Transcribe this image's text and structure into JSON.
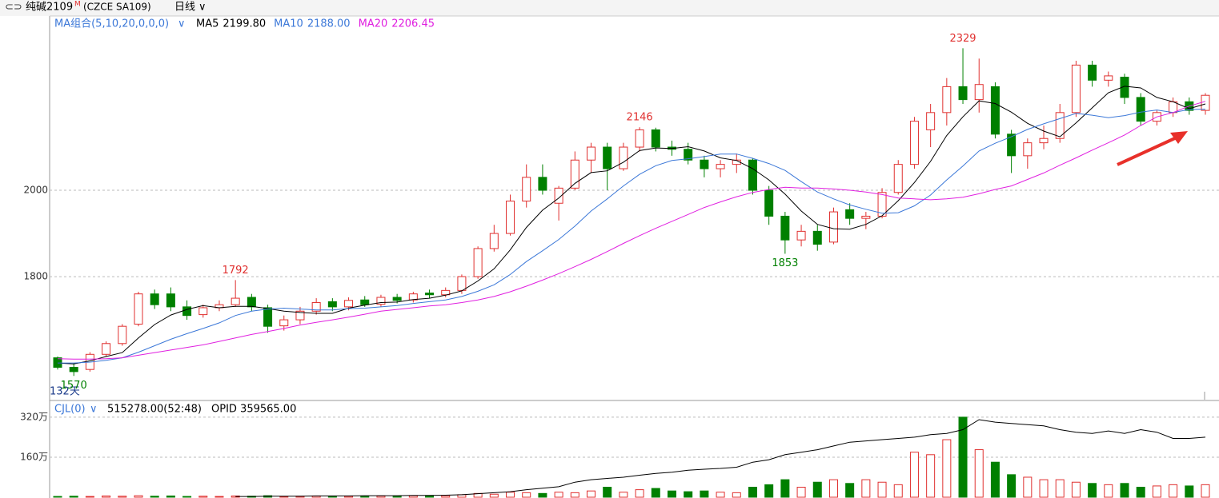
{
  "header": {
    "symbol": "纯碱2109",
    "flag": "M",
    "code": "(CZCE SA109)",
    "period": "日线"
  },
  "chart_data": {
    "type": "candlestick",
    "indicator": "MA组合(5,10,20,0,0,0)",
    "ylim": [
      1515,
      2400
    ],
    "yticks": [
      1800,
      2000
    ],
    "grid": true,
    "up_color": "#e0302f",
    "down_color": "#008000",
    "period_label": "132天",
    "annotations": [
      1570,
      1792,
      2146,
      1853,
      2329
    ],
    "candles": [
      {
        "o": 1612,
        "h": 1615,
        "l": 1585,
        "c": 1590
      },
      {
        "o": 1590,
        "h": 1600,
        "l": 1570,
        "c": 1580
      },
      {
        "o": 1585,
        "h": 1625,
        "l": 1580,
        "c": 1620
      },
      {
        "o": 1620,
        "h": 1650,
        "l": 1615,
        "c": 1645
      },
      {
        "o": 1645,
        "h": 1690,
        "l": 1640,
        "c": 1685
      },
      {
        "o": 1690,
        "h": 1765,
        "l": 1685,
        "c": 1760
      },
      {
        "o": 1760,
        "h": 1770,
        "l": 1725,
        "c": 1735
      },
      {
        "o": 1760,
        "h": 1775,
        "l": 1720,
        "c": 1730
      },
      {
        "o": 1730,
        "h": 1745,
        "l": 1700,
        "c": 1710
      },
      {
        "o": 1712,
        "h": 1735,
        "l": 1705,
        "c": 1728
      },
      {
        "o": 1728,
        "h": 1745,
        "l": 1720,
        "c": 1735
      },
      {
        "o": 1735,
        "h": 1792,
        "l": 1730,
        "c": 1750
      },
      {
        "o": 1752,
        "h": 1760,
        "l": 1720,
        "c": 1730
      },
      {
        "o": 1728,
        "h": 1735,
        "l": 1670,
        "c": 1685
      },
      {
        "o": 1686,
        "h": 1710,
        "l": 1675,
        "c": 1700
      },
      {
        "o": 1700,
        "h": 1730,
        "l": 1690,
        "c": 1720
      },
      {
        "o": 1720,
        "h": 1750,
        "l": 1712,
        "c": 1740
      },
      {
        "o": 1742,
        "h": 1750,
        "l": 1720,
        "c": 1730
      },
      {
        "o": 1730,
        "h": 1752,
        "l": 1722,
        "c": 1745
      },
      {
        "o": 1746,
        "h": 1755,
        "l": 1730,
        "c": 1735
      },
      {
        "o": 1736,
        "h": 1758,
        "l": 1730,
        "c": 1752
      },
      {
        "o": 1752,
        "h": 1760,
        "l": 1738,
        "c": 1745
      },
      {
        "o": 1746,
        "h": 1765,
        "l": 1740,
        "c": 1760
      },
      {
        "o": 1762,
        "h": 1770,
        "l": 1750,
        "c": 1758
      },
      {
        "o": 1758,
        "h": 1775,
        "l": 1752,
        "c": 1768
      },
      {
        "o": 1768,
        "h": 1805,
        "l": 1760,
        "c": 1800
      },
      {
        "o": 1800,
        "h": 1870,
        "l": 1795,
        "c": 1865
      },
      {
        "o": 1865,
        "h": 1920,
        "l": 1858,
        "c": 1900
      },
      {
        "o": 1900,
        "h": 1990,
        "l": 1895,
        "c": 1975
      },
      {
        "o": 1975,
        "h": 2060,
        "l": 1960,
        "c": 2030
      },
      {
        "o": 2030,
        "h": 2060,
        "l": 1990,
        "c": 2000
      },
      {
        "o": 1970,
        "h": 2010,
        "l": 1930,
        "c": 2005
      },
      {
        "o": 2005,
        "h": 2090,
        "l": 2000,
        "c": 2070
      },
      {
        "o": 2070,
        "h": 2110,
        "l": 2040,
        "c": 2100
      },
      {
        "o": 2100,
        "h": 2110,
        "l": 2000,
        "c": 2050
      },
      {
        "o": 2050,
        "h": 2110,
        "l": 2045,
        "c": 2100
      },
      {
        "o": 2100,
        "h": 2146,
        "l": 2090,
        "c": 2140
      },
      {
        "o": 2140,
        "h": 2145,
        "l": 2090,
        "c": 2100
      },
      {
        "o": 2100,
        "h": 2115,
        "l": 2080,
        "c": 2095
      },
      {
        "o": 2095,
        "h": 2110,
        "l": 2060,
        "c": 2070
      },
      {
        "o": 2070,
        "h": 2080,
        "l": 2030,
        "c": 2050
      },
      {
        "o": 2050,
        "h": 2070,
        "l": 2030,
        "c": 2060
      },
      {
        "o": 2060,
        "h": 2085,
        "l": 2040,
        "c": 2070
      },
      {
        "o": 2070,
        "h": 2075,
        "l": 1990,
        "c": 2000
      },
      {
        "o": 2000,
        "h": 2010,
        "l": 1920,
        "c": 1940
      },
      {
        "o": 1940,
        "h": 1950,
        "l": 1853,
        "c": 1885
      },
      {
        "o": 1885,
        "h": 1920,
        "l": 1870,
        "c": 1905
      },
      {
        "o": 1905,
        "h": 1920,
        "l": 1860,
        "c": 1875
      },
      {
        "o": 1880,
        "h": 1960,
        "l": 1875,
        "c": 1950
      },
      {
        "o": 1955,
        "h": 1970,
        "l": 1920,
        "c": 1935
      },
      {
        "o": 1935,
        "h": 1950,
        "l": 1910,
        "c": 1940
      },
      {
        "o": 1940,
        "h": 2005,
        "l": 1935,
        "c": 1995
      },
      {
        "o": 1995,
        "h": 2070,
        "l": 1990,
        "c": 2060
      },
      {
        "o": 2060,
        "h": 2170,
        "l": 2050,
        "c": 2160
      },
      {
        "o": 2140,
        "h": 2200,
        "l": 2100,
        "c": 2180
      },
      {
        "o": 2180,
        "h": 2260,
        "l": 2150,
        "c": 2240
      },
      {
        "o": 2240,
        "h": 2329,
        "l": 2200,
        "c": 2210
      },
      {
        "o": 2210,
        "h": 2305,
        "l": 2180,
        "c": 2245
      },
      {
        "o": 2240,
        "h": 2250,
        "l": 2120,
        "c": 2130
      },
      {
        "o": 2130,
        "h": 2140,
        "l": 2040,
        "c": 2080
      },
      {
        "o": 2080,
        "h": 2120,
        "l": 2050,
        "c": 2110
      },
      {
        "o": 2110,
        "h": 2150,
        "l": 2095,
        "c": 2120
      },
      {
        "o": 2120,
        "h": 2200,
        "l": 2110,
        "c": 2180
      },
      {
        "o": 2180,
        "h": 2300,
        "l": 2170,
        "c": 2290
      },
      {
        "o": 2290,
        "h": 2300,
        "l": 2240,
        "c": 2255
      },
      {
        "o": 2255,
        "h": 2275,
        "l": 2240,
        "c": 2265
      },
      {
        "o": 2262,
        "h": 2270,
        "l": 2200,
        "c": 2215
      },
      {
        "o": 2215,
        "h": 2225,
        "l": 2150,
        "c": 2160
      },
      {
        "o": 2160,
        "h": 2185,
        "l": 2150,
        "c": 2180
      },
      {
        "o": 2180,
        "h": 2215,
        "l": 2170,
        "c": 2205
      },
      {
        "o": 2205,
        "h": 2215,
        "l": 2175,
        "c": 2185
      },
      {
        "o": 2185,
        "h": 2225,
        "l": 2175,
        "c": 2220
      }
    ],
    "series": [
      {
        "name": "MA5",
        "current": "2199.80",
        "color": "#000000",
        "values": [
          1600,
          1598,
          1605,
          1615,
          1624,
          1658,
          1689,
          1711,
          1724,
          1733,
          1728,
          1731,
          1731,
          1726,
          1720,
          1717,
          1715,
          1715,
          1727,
          1734,
          1740,
          1741,
          1747,
          1750,
          1757,
          1767,
          1790,
          1818,
          1862,
          1914,
          1954,
          1982,
          2016,
          2041,
          2045,
          2065,
          2092,
          2098,
          2097,
          2101,
          2091,
          2075,
          2069,
          2050,
          2024,
          1991,
          1952,
          1921,
          1911,
          1910,
          1921,
          1941,
          1976,
          2018,
          2067,
          2127,
          2170,
          2207,
          2201,
          2181,
          2155,
          2137,
          2124,
          2156,
          2191,
          2226,
          2241,
          2237,
          2215,
          2205,
          2189,
          2200
        ]
      },
      {
        "name": "MA10",
        "current": "2188.00",
        "color": "#3c78d8",
        "values": [
          1600,
          1600,
          1602,
          1606,
          1612,
          1625,
          1640,
          1655,
          1668,
          1680,
          1693,
          1710,
          1720,
          1725,
          1727,
          1725,
          1723,
          1723,
          1726,
          1727,
          1730,
          1733,
          1738,
          1742,
          1746,
          1754,
          1766,
          1781,
          1805,
          1835,
          1860,
          1886,
          1917,
          1952,
          1980,
          2010,
          2037,
          2057,
          2069,
          2073,
          2078,
          2084,
          2084,
          2074,
          2062,
          2046,
          2020,
          1996,
          1980,
          1966,
          1956,
          1947,
          1948,
          1964,
          1989,
          2024,
          2056,
          2091,
          2109,
          2124,
          2141,
          2154,
          2166,
          2178,
          2174,
          2168,
          2173,
          2181,
          2186,
          2180,
          2187,
          2188
        ]
      },
      {
        "name": "MA20",
        "current": "2206.45",
        "color": "#e020e0",
        "values": [
          1610,
          1609,
          1609,
          1610,
          1612,
          1618,
          1624,
          1630,
          1636,
          1642,
          1650,
          1658,
          1666,
          1673,
          1680,
          1688,
          1694,
          1700,
          1706,
          1713,
          1720,
          1724,
          1728,
          1732,
          1735,
          1740,
          1746,
          1754,
          1765,
          1778,
          1792,
          1807,
          1823,
          1840,
          1858,
          1877,
          1895,
          1912,
          1928,
          1944,
          1960,
          1973,
          1985,
          1995,
          2002,
          2007,
          2005,
          2005,
          2003,
          2000,
          1996,
          1990,
          1982,
          1980,
          1978,
          1980,
          1984,
          1992,
          2002,
          2010,
          2025,
          2040,
          2058,
          2075,
          2093,
          2110,
          2128,
          2150,
          2170,
          2180,
          2195,
          2206
        ]
      }
    ],
    "volume": {
      "indicator": "CJL(0)",
      "reading": "515278.00(52:48)",
      "opid_label": "OPID 359565.00",
      "ylim": [
        0,
        374
      ],
      "yticks": [
        {
          "value": 160,
          "label": "160万"
        },
        {
          "value": 320,
          "label": "320万"
        }
      ],
      "values": [
        3,
        4,
        3,
        5,
        4,
        6,
        4,
        5,
        3,
        4,
        3,
        5,
        4,
        6,
        3,
        4,
        5,
        3,
        4,
        3,
        5,
        4,
        6,
        5,
        6,
        10,
        15,
        12,
        20,
        18,
        15,
        20,
        18,
        25,
        40,
        20,
        30,
        35,
        25,
        22,
        25,
        20,
        18,
        40,
        50,
        70,
        40,
        60,
        70,
        55,
        70,
        60,
        50,
        180,
        170,
        230,
        320,
        190,
        140,
        90,
        80,
        70,
        70,
        60,
        55,
        50,
        55,
        40,
        45,
        50,
        45,
        50
      ],
      "opid": [
        null,
        null,
        null,
        null,
        null,
        null,
        null,
        null,
        null,
        null,
        null,
        3,
        3,
        4,
        4,
        4,
        5,
        5,
        5,
        6,
        6,
        6,
        7,
        7,
        8,
        10,
        14,
        18,
        22,
        30,
        36,
        42,
        60,
        70,
        75,
        80,
        88,
        95,
        100,
        108,
        112,
        115,
        120,
        140,
        150,
        170,
        180,
        190,
        205,
        220,
        225,
        230,
        235,
        240,
        250,
        255,
        270,
        310,
        300,
        295,
        290,
        285,
        270,
        260,
        255,
        265,
        255,
        270,
        260,
        235,
        235,
        240
      ]
    }
  }
}
